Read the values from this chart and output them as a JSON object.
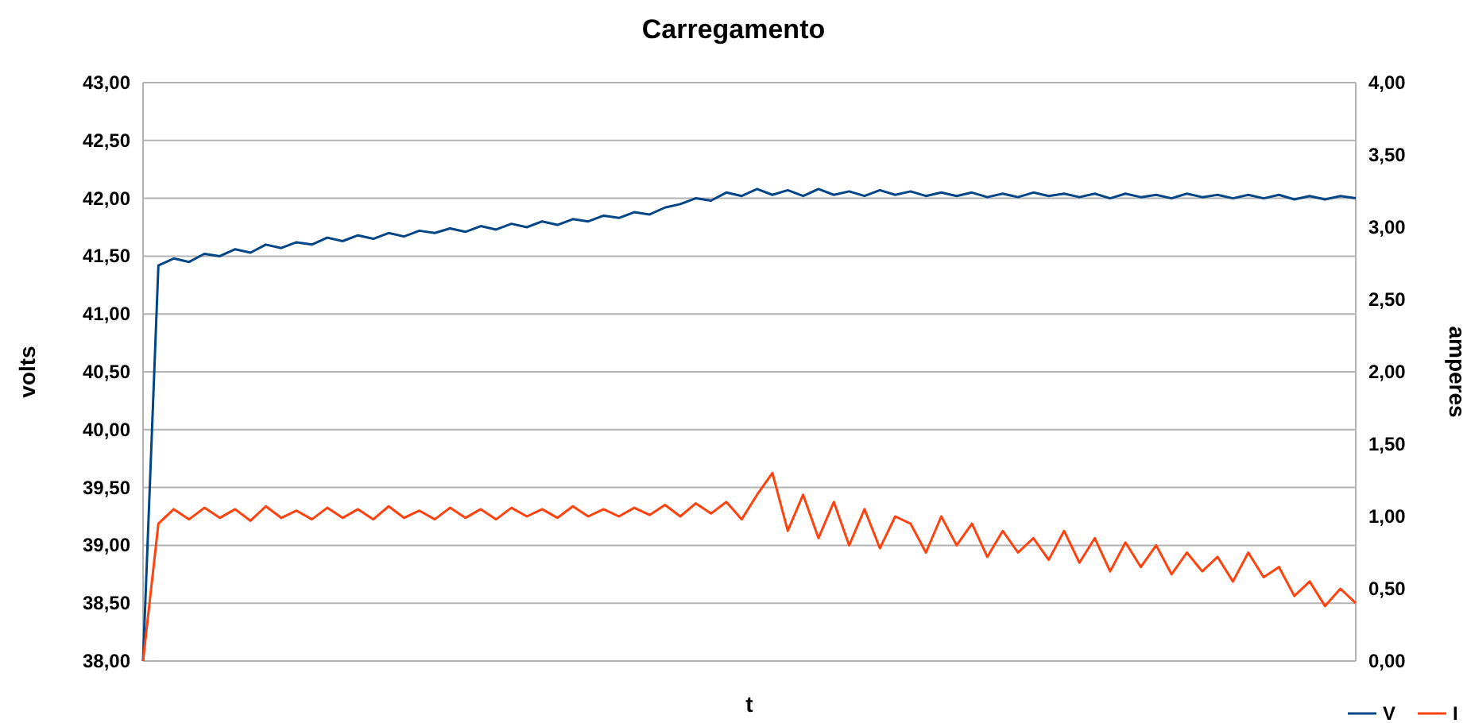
{
  "chart_data": {
    "type": "line",
    "title": "Carregamento",
    "xlabel": "t",
    "ylabel": "volts",
    "y2label": "amperes",
    "categories": [
      null,
      null,
      null,
      null,
      null,
      null,
      null,
      null,
      null,
      null,
      null,
      null,
      null,
      null,
      null,
      null,
      null,
      null,
      null,
      null,
      null,
      null,
      null,
      null,
      null,
      null,
      null,
      null,
      null,
      null,
      null,
      null,
      null,
      null,
      null,
      null,
      null,
      null,
      null,
      null,
      null,
      null,
      null,
      null,
      null,
      null,
      null,
      null,
      null,
      null,
      null,
      null,
      null,
      null,
      null,
      null,
      null,
      null,
      null,
      null,
      null,
      null,
      null,
      null,
      null,
      null,
      null,
      null,
      null,
      null,
      null,
      null,
      null,
      null,
      null,
      null,
      null,
      null,
      null,
      null
    ],
    "series": [
      {
        "name": "V",
        "color": "#004586",
        "values": [
          38.0,
          41.42,
          41.48,
          41.45,
          41.52,
          41.5,
          41.56,
          41.53,
          41.6,
          41.57,
          41.62,
          41.6,
          41.66,
          41.63,
          41.68,
          41.65,
          41.7,
          41.67,
          41.72,
          41.7,
          41.74,
          41.71,
          41.76,
          41.73,
          41.78,
          41.75,
          41.8,
          41.77,
          41.82,
          41.8,
          41.85,
          41.83,
          41.88,
          41.86,
          41.92,
          41.95,
          42.0,
          41.98,
          42.05,
          42.02,
          42.08,
          42.03,
          42.07,
          42.02,
          42.08,
          42.03,
          42.06,
          42.02,
          42.07,
          42.03,
          42.06,
          42.02,
          42.05,
          42.02,
          42.05,
          42.01,
          42.04,
          42.01,
          42.05,
          42.02,
          42.04,
          42.01,
          42.04,
          42.0,
          42.04,
          42.01,
          42.03,
          42.0,
          42.04,
          42.01,
          42.03,
          42.0,
          42.03,
          42.0,
          42.03,
          41.99,
          42.02,
          41.99,
          42.02,
          42.0
        ]
      },
      {
        "name": "I",
        "color": "#ff420e",
        "axis": "y2",
        "values": [
          0.0,
          0.95,
          1.05,
          0.98,
          1.06,
          0.99,
          1.05,
          0.97,
          1.07,
          0.99,
          1.04,
          0.98,
          1.06,
          0.99,
          1.05,
          0.98,
          1.07,
          0.99,
          1.04,
          0.98,
          1.06,
          0.99,
          1.05,
          0.98,
          1.06,
          1.0,
          1.05,
          0.99,
          1.07,
          1.0,
          1.05,
          1.0,
          1.06,
          1.01,
          1.08,
          1.0,
          1.09,
          1.02,
          1.1,
          0.98,
          1.15,
          1.3,
          0.9,
          1.15,
          0.85,
          1.1,
          0.8,
          1.05,
          0.78,
          1.0,
          0.95,
          0.75,
          1.0,
          0.8,
          0.95,
          0.72,
          0.9,
          0.75,
          0.85,
          0.7,
          0.9,
          0.68,
          0.85,
          0.62,
          0.82,
          0.65,
          0.8,
          0.6,
          0.75,
          0.62,
          0.72,
          0.55,
          0.75,
          0.58,
          0.65,
          0.45,
          0.55,
          0.38,
          0.5,
          0.4
        ]
      }
    ],
    "ylim": [
      38,
      43
    ],
    "yticks": [
      {
        "value": 38,
        "label": "38,00"
      },
      {
        "value": 38.5,
        "label": "38,50"
      },
      {
        "value": 39,
        "label": "39,00"
      },
      {
        "value": 39.5,
        "label": "39,50"
      },
      {
        "value": 40,
        "label": "40,00"
      },
      {
        "value": 40.5,
        "label": "40,50"
      },
      {
        "value": 41,
        "label": "41,00"
      },
      {
        "value": 41.5,
        "label": "41,50"
      },
      {
        "value": 42,
        "label": "42,00"
      },
      {
        "value": 42.5,
        "label": "42,50"
      },
      {
        "value": 43,
        "label": "43,00"
      }
    ],
    "y2lim": [
      0,
      4
    ],
    "y2ticks": [
      {
        "value": 0,
        "label": "0,00"
      },
      {
        "value": 0.5,
        "label": "0,50"
      },
      {
        "value": 1,
        "label": "1,00"
      },
      {
        "value": 1.5,
        "label": "1,50"
      },
      {
        "value": 2,
        "label": "2,00"
      },
      {
        "value": 2.5,
        "label": "2,50"
      },
      {
        "value": 3,
        "label": "3,00"
      },
      {
        "value": 3.5,
        "label": "3,50"
      },
      {
        "value": 4,
        "label": "4,00"
      }
    ],
    "grid": "y",
    "legend": "bottom right",
    "marker": "none",
    "line_style": "solid"
  }
}
